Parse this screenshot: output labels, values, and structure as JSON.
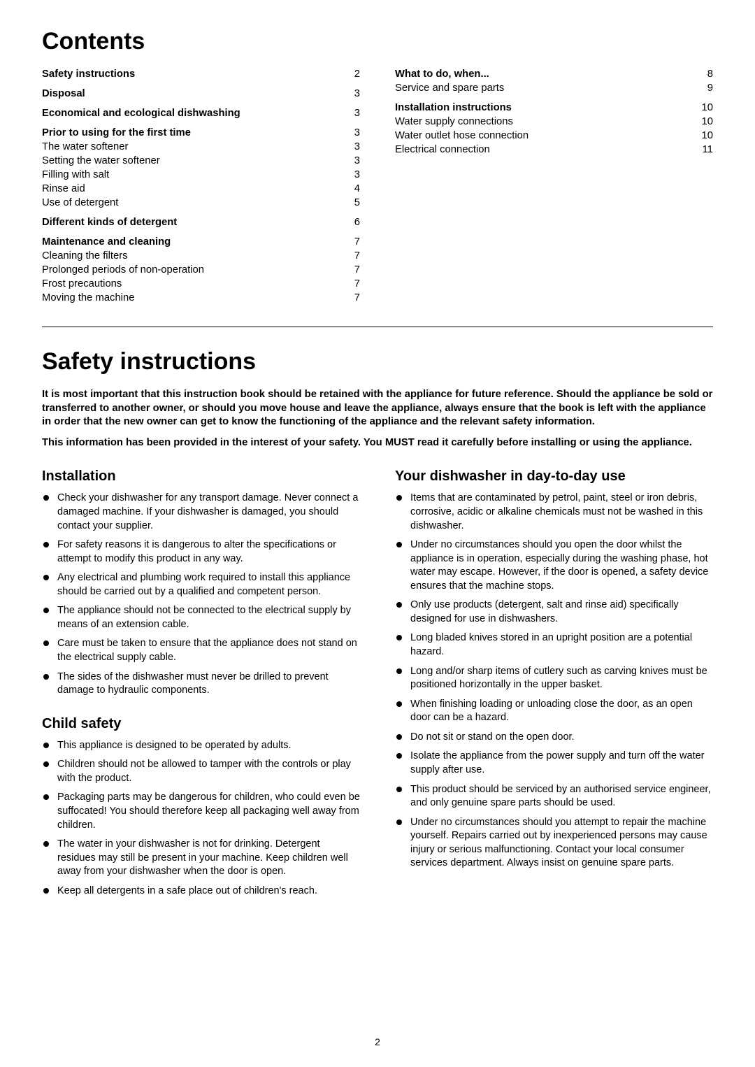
{
  "headings": {
    "contents": "Contents",
    "safety": "Safety instructions"
  },
  "toc_left": [
    {
      "items": [
        {
          "label": "Safety instructions",
          "bold": true,
          "page": "2"
        }
      ]
    },
    {
      "items": [
        {
          "label": "Disposal",
          "bold": true,
          "page": "3"
        }
      ]
    },
    {
      "items": [
        {
          "label": "Economical and ecological dishwashing",
          "bold": true,
          "page": "3"
        }
      ]
    },
    {
      "items": [
        {
          "label": "Prior to using for the first time",
          "bold": true,
          "page": "3"
        },
        {
          "label": "The water softener",
          "bold": false,
          "page": "3"
        },
        {
          "label": "Setting the water softener",
          "bold": false,
          "page": "3"
        },
        {
          "label": "Filling with salt",
          "bold": false,
          "page": "3"
        },
        {
          "label": "Rinse aid",
          "bold": false,
          "page": "4"
        },
        {
          "label": "Use of detergent",
          "bold": false,
          "page": "5"
        }
      ]
    },
    {
      "items": [
        {
          "label": "Different kinds of detergent",
          "bold": true,
          "page": "6"
        }
      ]
    },
    {
      "items": [
        {
          "label": "Maintenance and cleaning",
          "bold": true,
          "page": "7"
        },
        {
          "label": "Cleaning the filters",
          "bold": false,
          "page": "7"
        },
        {
          "label": "Prolonged periods of non-operation",
          "bold": false,
          "page": "7"
        },
        {
          "label": "Frost precautions",
          "bold": false,
          "page": "7"
        },
        {
          "label": "Moving the machine",
          "bold": false,
          "page": "7"
        }
      ]
    }
  ],
  "toc_right": [
    {
      "items": [
        {
          "label": "What to do, when...",
          "bold": true,
          "page": "8"
        },
        {
          "label": "Service and spare parts",
          "bold": false,
          "page": "9"
        }
      ]
    },
    {
      "items": [
        {
          "label": "Installation instructions",
          "bold": true,
          "page": "10"
        },
        {
          "label": "Water supply connections",
          "bold": false,
          "page": "10"
        },
        {
          "label": "Water outlet hose connection",
          "bold": false,
          "page": "10"
        },
        {
          "label": "Electrical connection",
          "bold": false,
          "page": "11"
        }
      ]
    }
  ],
  "intro": {
    "p1": "It is most important that this instruction book should be retained with the appliance for future reference. Should the appliance be sold or transferred to another owner, or should you move house and leave the appliance, always ensure that the book is left with the appliance in order that the new owner can get to know the functioning of the appliance and the relevant safety information.",
    "p2": "This information has been provided in the interest of your safety. You MUST read it carefully before installing or using the appliance."
  },
  "sections": {
    "installation": {
      "title": "Installation",
      "items": [
        "Check your dishwasher for any transport damage. Never connect a damaged machine. If your dishwasher is damaged, you should contact your supplier.",
        "For safety reasons it is dangerous to alter the specifications or attempt to modify this product in any way.",
        "Any electrical and plumbing work required to install this appliance should be carried out by a qualified and competent person.",
        "The appliance should not be connected to the electrical supply by means of an extension cable.",
        "Care must be taken to ensure that the appliance does not stand on the electrical supply cable.",
        "The sides of the dishwasher must never be drilled to prevent damage to hydraulic components."
      ]
    },
    "child_safety": {
      "title": "Child safety",
      "items": [
        "This appliance is designed to be operated by adults.",
        "Children should not be allowed to tamper with the controls or play with the product.",
        "Packaging parts may be dangerous for children, who could even be suffocated! You should therefore keep all packaging well away from children.",
        "The water in your dishwasher is not for drinking. Detergent residues may still be present in your machine. Keep children well away from your dishwasher when the door is open.",
        "Keep all detergents in a safe place out of children's reach."
      ]
    },
    "day_to_day": {
      "title": "Your dishwasher in day-to-day use",
      "items": [
        "Items that are contaminated by petrol, paint, steel or iron debris, corrosive, acidic or alkaline chemicals must not be washed in this dishwasher.",
        "Under no circumstances should you open the door whilst the appliance is in operation, especially during the washing phase, hot water may escape. However, if the door is opened, a safety device ensures that the machine stops.",
        "Only use products (detergent, salt and rinse aid) specifically designed for use in dishwashers.",
        "Long bladed knives stored in an upright position are a potential hazard.",
        "Long and/or sharp items of cutlery such as carving knives must be positioned horizontally in the upper basket.",
        "When finishing loading or unloading close the door, as an open door can be a hazard.",
        "Do not sit or stand on the open door.",
        "Isolate the appliance from the power supply and turn off the water supply after use.",
        "This product should be serviced by an authorised service engineer, and only genuine spare parts should be used.",
        "Under no circumstances should you attempt to repair the machine yourself. Repairs carried out by inexperienced persons may cause injury or serious malfunctioning. Contact your local consumer services department. Always insist on genuine spare parts."
      ]
    }
  },
  "page_num": "2",
  "style": {
    "page_bg": "#ffffff",
    "text_color": "#000000",
    "h1_fontsize": 34,
    "h2_fontsize": 20,
    "body_fontsize": 14.5,
    "toc_fontsize": 14.8,
    "rule_color": "#000000",
    "bullet_color": "#000000"
  }
}
